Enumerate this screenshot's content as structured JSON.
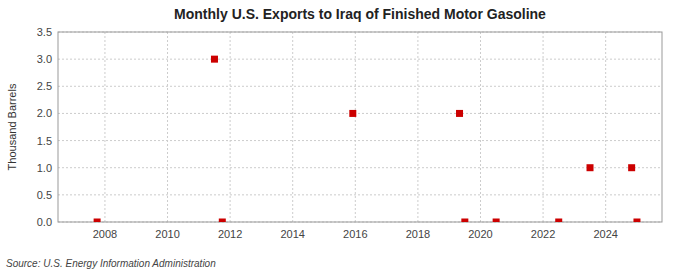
{
  "chart_data": {
    "type": "scatter",
    "title": "Monthly U.S. Exports to Iraq of Finished Motor Gasoline",
    "ylabel": "Thousand Barrels",
    "source": "Source: U.S. Energy Information Administration",
    "x": [
      2007.75,
      2011.5,
      2011.75,
      2015.92,
      2019.33,
      2019.5,
      2020.5,
      2022.5,
      2023.5,
      2024.83,
      2025.0
    ],
    "values": [
      0.0,
      3.0,
      0.0,
      2.0,
      2.0,
      0.0,
      0.0,
      0.0,
      1.0,
      1.0,
      0.0
    ],
    "color": "#cc0000",
    "marker": "square",
    "xlim": [
      2006.5,
      2025.8
    ],
    "ylim": [
      0.0,
      3.5
    ],
    "xticks": [
      2008,
      2010,
      2012,
      2014,
      2016,
      2018,
      2020,
      2022,
      2024
    ],
    "yticks": [
      {
        "value": 0.0,
        "label": "0.0"
      },
      0.5,
      {
        "value": 1.0,
        "label": "1.0"
      },
      1.5,
      {
        "value": 2.0,
        "label": "2.0"
      },
      2.5,
      {
        "value": 3.0,
        "label": "3.0"
      },
      3.5
    ],
    "grid": true
  }
}
